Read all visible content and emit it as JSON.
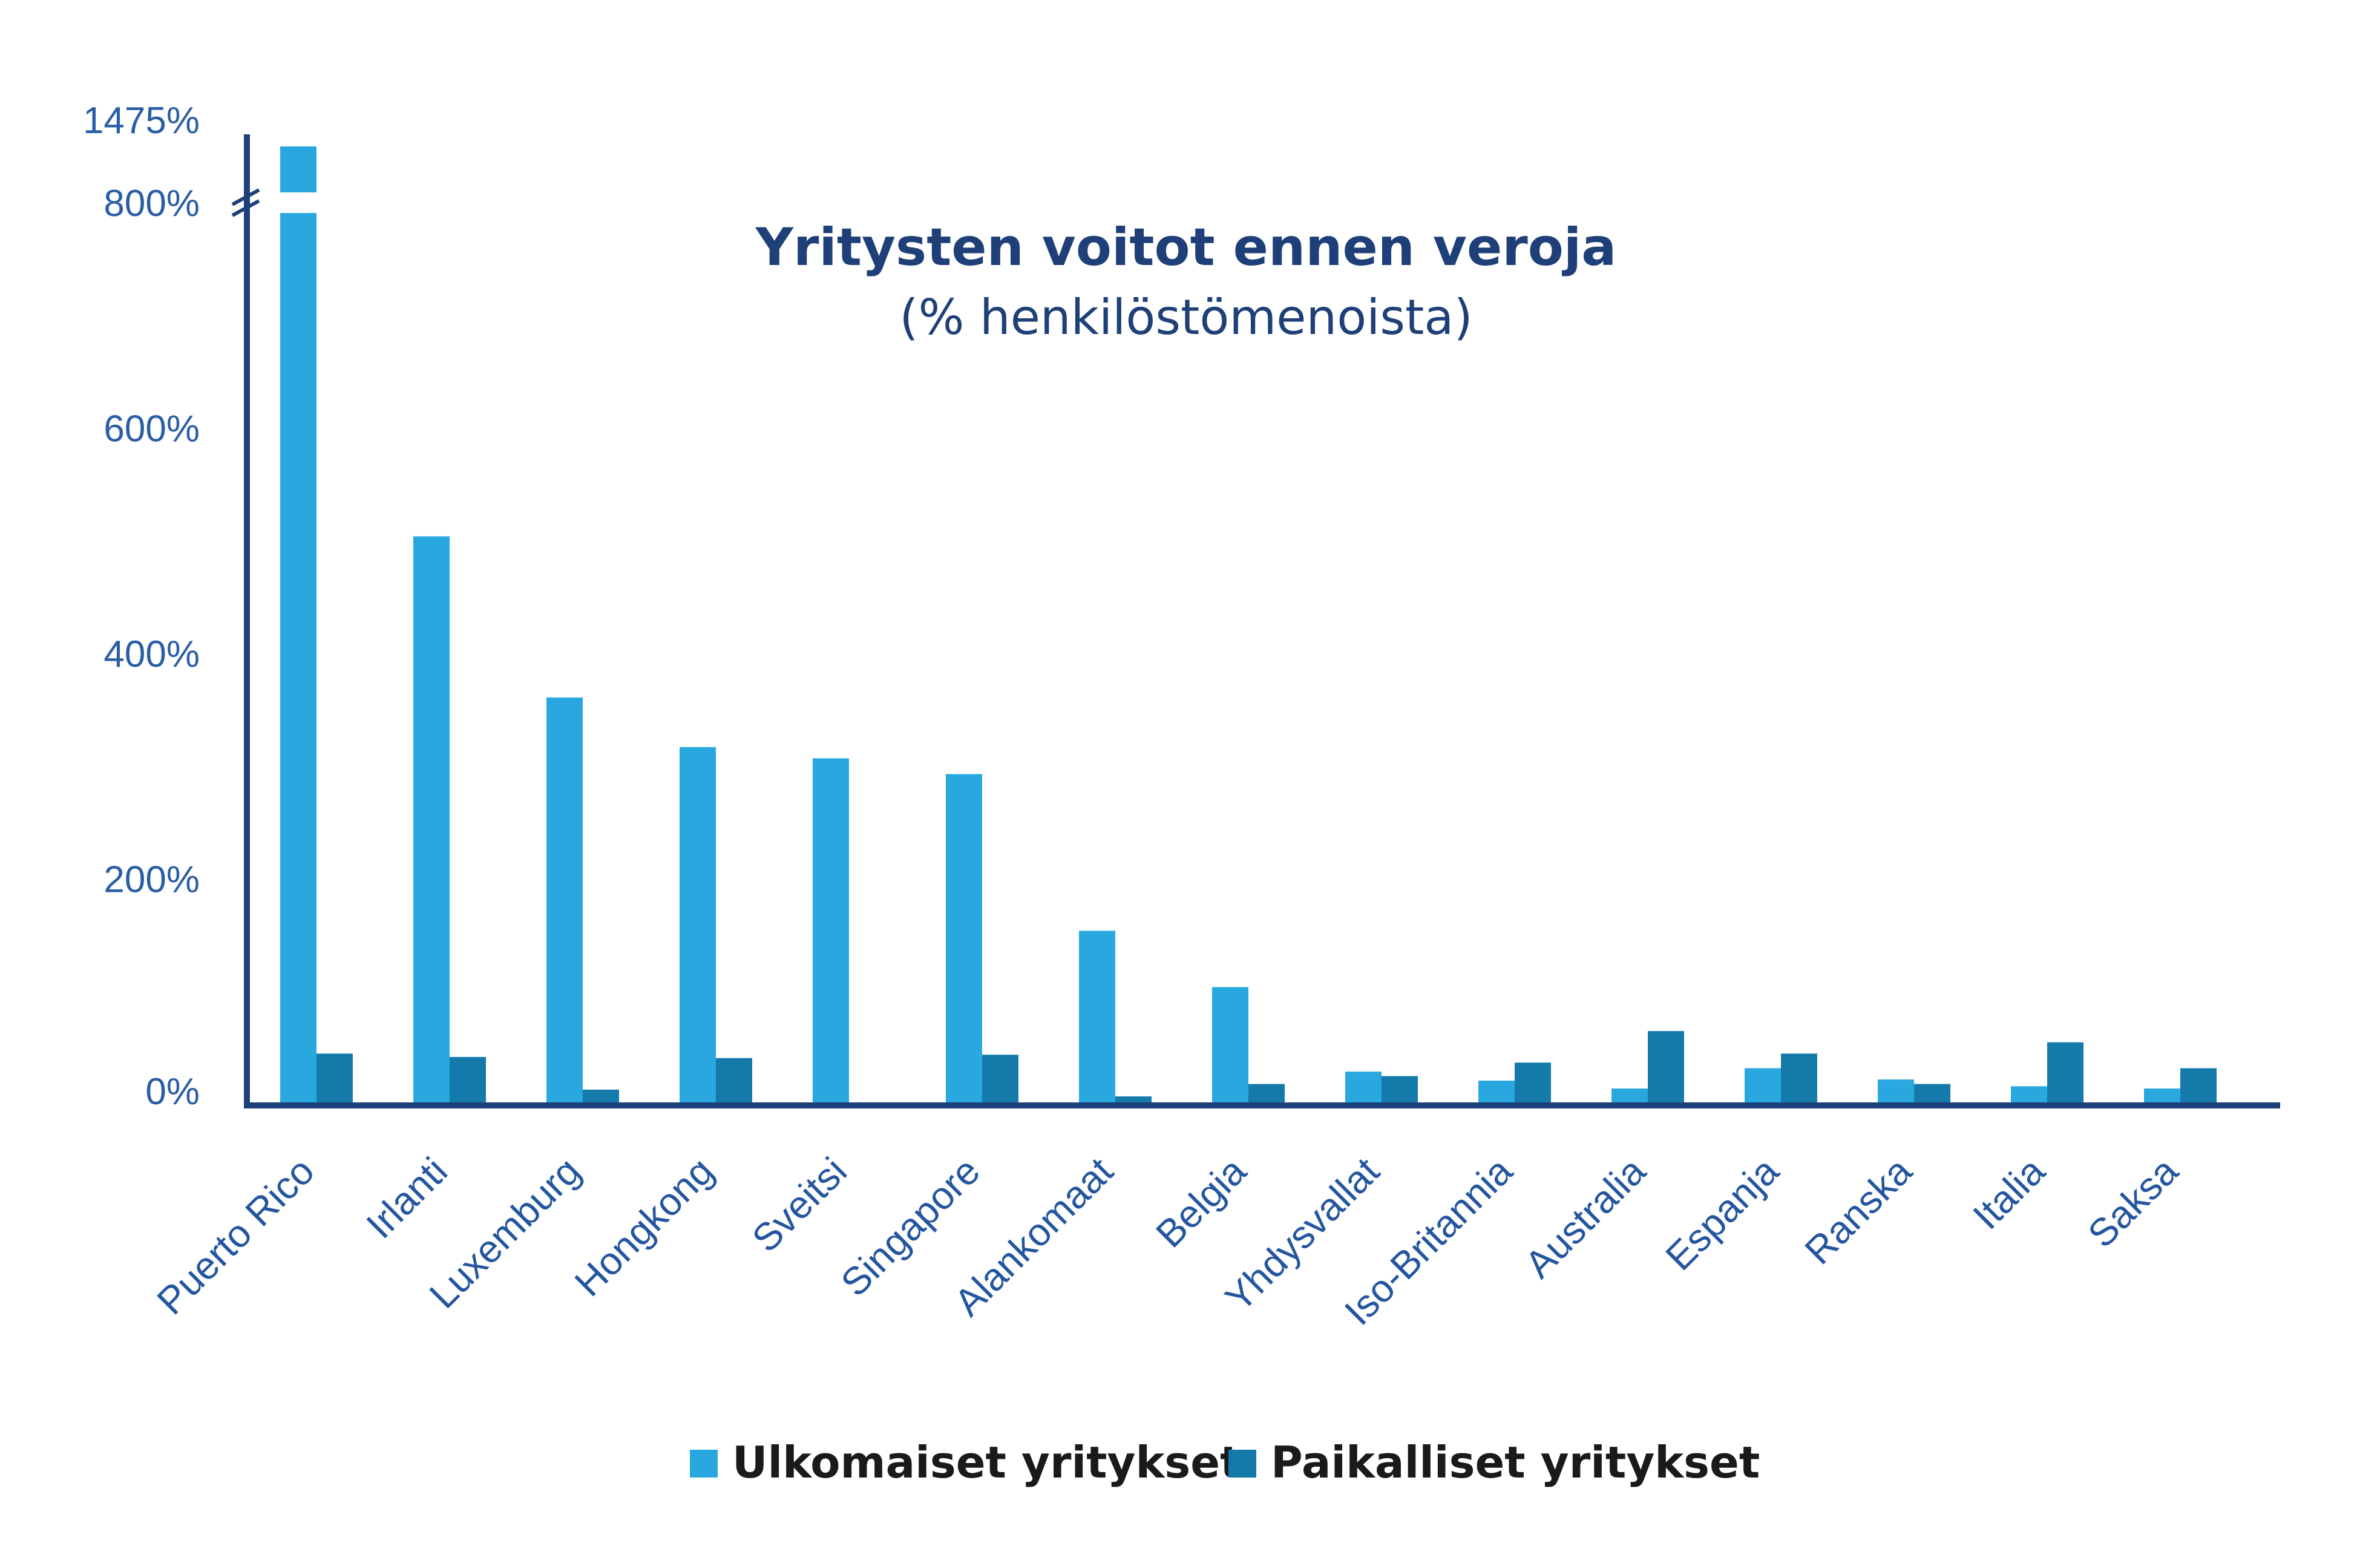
{
  "chart_data": {
    "type": "bar",
    "title": "Yritysten voitot ennen veroja",
    "subtitle": "(% henkilöstömenoista)",
    "categories": [
      "Puerto Rico",
      "Irlanti",
      "Luxemburg",
      "Hongkong",
      "Sveitsi",
      "Singapore",
      "Alankomaat",
      "Belgia",
      "Yhdysvallat",
      "Iso-Britannia",
      "Australia",
      "Espanja",
      "Ranska",
      "Italia",
      "Saksa"
    ],
    "series": [
      {
        "name": "Ulkomaiset yritykset",
        "color": "#29a8e0",
        "values": [
          1475,
          505,
          362,
          318,
          308,
          294,
          155,
          105,
          30,
          22,
          15,
          33,
          23,
          17,
          15
        ]
      },
      {
        "name": "Paikalliset yritykset",
        "color": "#137aaa",
        "values": [
          46,
          43,
          14,
          42,
          null,
          45,
          8,
          19,
          26,
          38,
          66,
          46,
          19,
          56,
          33
        ]
      }
    ],
    "y_ticks": [
      "0%",
      "200%",
      "400%",
      "600%",
      "800%",
      "1475%"
    ],
    "ylim": [
      0,
      1475
    ],
    "axis_break": [
      800,
      1475
    ],
    "grid": false,
    "legend_position": "bottom",
    "axis_color": "#1e3f78"
  }
}
